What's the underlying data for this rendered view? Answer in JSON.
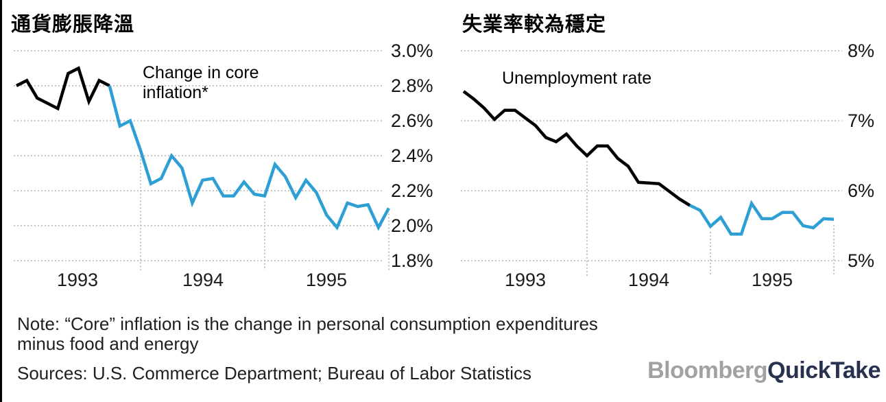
{
  "header": {
    "title_left": "通貨膨脹降溫",
    "title_right": "失業率較為穩定"
  },
  "chart_data": [
    {
      "type": "line",
      "title": "通貨膨脹降溫",
      "series_label_lines": [
        "Change in core",
        "inflation*"
      ],
      "x_tick_labels": [
        "1993",
        "1994",
        "1995"
      ],
      "y_tick_labels": [
        "3.0%",
        "2.8%",
        "2.6%",
        "2.4%",
        "2.2%",
        "2.0%",
        "1.8%"
      ],
      "ylim": [
        1.8,
        3.0
      ],
      "x_start": "1993-01",
      "x_interval": "monthly",
      "grid": "dotted",
      "legend_position": "inside-top-left",
      "values": [
        2.8,
        2.83,
        2.73,
        2.7,
        2.67,
        2.87,
        2.9,
        2.71,
        2.83,
        2.8,
        2.57,
        2.6,
        2.43,
        2.24,
        2.27,
        2.4,
        2.33,
        2.13,
        2.26,
        2.27,
        2.17,
        2.17,
        2.25,
        2.18,
        2.17,
        2.35,
        2.28,
        2.16,
        2.26,
        2.19,
        2.06,
        1.99,
        2.13,
        2.11,
        2.12,
        1.99,
        2.1
      ],
      "color_change_index": 9,
      "colors": {
        "early": "#000000",
        "late": "#2d9fd4"
      }
    },
    {
      "type": "line",
      "title": "失業率較為穩定",
      "series_label_lines": [
        "Unemployment rate"
      ],
      "x_tick_labels": [
        "1993",
        "1994",
        "1995"
      ],
      "y_tick_labels": [
        "8%",
        "7%",
        "6%",
        "5%"
      ],
      "ylim": [
        5,
        8
      ],
      "x_start": "1993-01",
      "x_interval": "monthly",
      "grid": "dotted",
      "legend_position": "inside-top-left",
      "values": [
        7.42,
        7.31,
        7.18,
        7.02,
        7.15,
        7.15,
        7.04,
        6.93,
        6.76,
        6.7,
        6.81,
        6.64,
        6.5,
        6.64,
        6.64,
        6.46,
        6.35,
        6.12,
        6.11,
        6.1,
        5.99,
        5.88,
        5.79,
        5.72,
        5.49,
        5.62,
        5.38,
        5.38,
        5.82,
        5.6,
        5.6,
        5.69,
        5.69,
        5.5,
        5.47,
        5.6,
        5.59
      ],
      "color_change_index": 22,
      "colors": {
        "early": "#000000",
        "late": "#2d9fd4"
      }
    }
  ],
  "style": {
    "gridline_color": "#b5b2ae",
    "line_width": 4.5
  },
  "footer": {
    "note_lines": [
      "Note: “Core” inflation is the change in personal consumption expenditures",
      "minus food and energy"
    ],
    "sources": "Sources: U.S. Commerce Department; Bureau of Labor Statistics",
    "logo": {
      "part1": "Bloomberg",
      "part2": "QuickTake",
      "color1": "#9fa1a4",
      "color2": "#28324e"
    }
  }
}
